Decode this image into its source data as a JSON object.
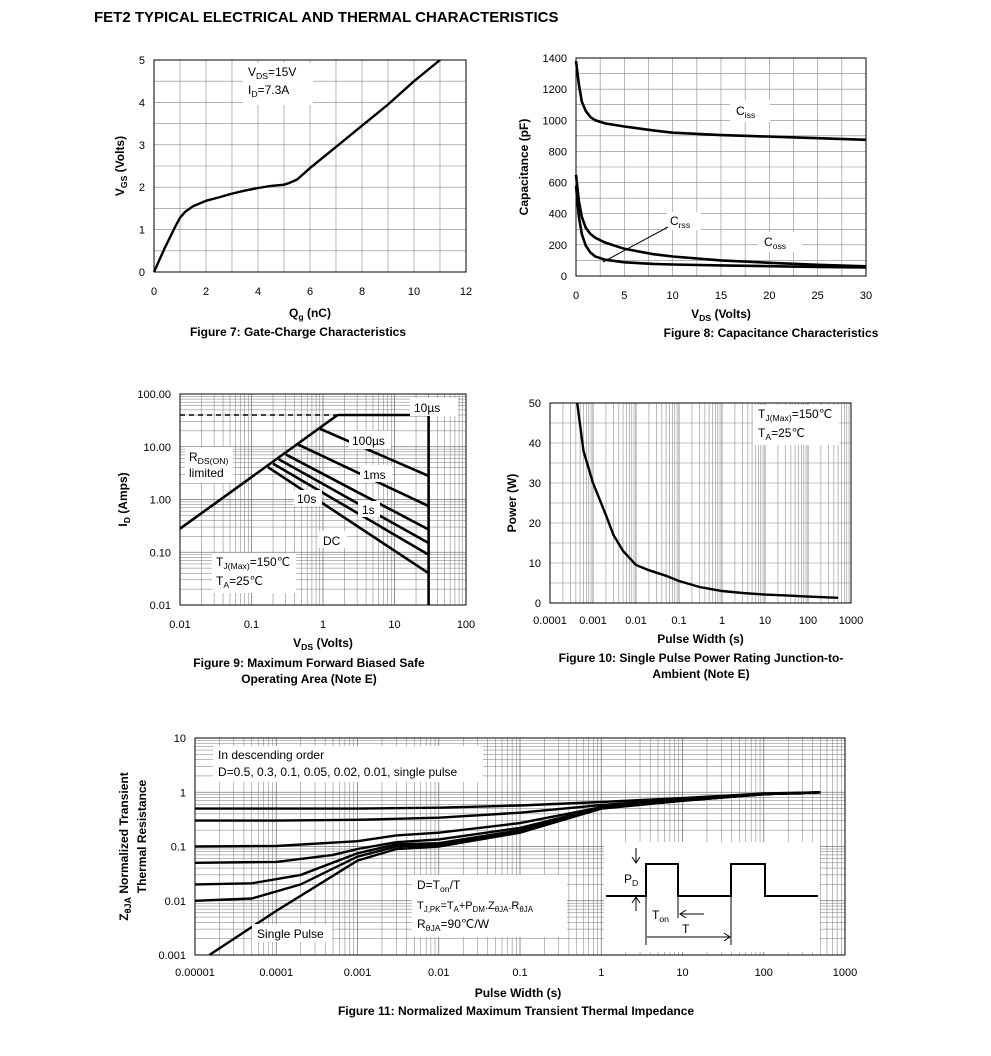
{
  "page_title": "FET2 TYPICAL ELECTRICAL AND THERMAL CHARACTERISTICS",
  "chart_data": [
    {
      "id": "fig7",
      "type": "line",
      "caption": "Figure 7: Gate-Charge Characteristics",
      "xlabel": {
        "main": "Q",
        "sub": "g",
        "tail": " (nC)"
      },
      "ylabel": {
        "main": "V",
        "sub": "GS",
        "tail": " (Volts)"
      },
      "xlim": [
        0,
        12
      ],
      "ylim": [
        0,
        5
      ],
      "xticks": [
        0,
        2,
        4,
        6,
        8,
        10,
        12
      ],
      "yticks": [
        0,
        1,
        2,
        3,
        4,
        5
      ],
      "grid": true,
      "annotations": [
        {
          "main": "V",
          "sub": "DS",
          "tail": "=15V"
        },
        {
          "main": "I",
          "sub": "D",
          "tail": "=7.3A"
        }
      ],
      "series": [
        {
          "x": [
            0,
            0.4,
            0.8,
            1.0,
            1.2,
            1.5,
            2.0,
            2.5,
            3.0,
            3.5,
            4.0,
            4.5,
            5.0,
            5.2,
            5.5,
            6.0,
            7.0,
            8.0,
            9.0,
            10.0,
            11.0
          ],
          "y": [
            0,
            0.55,
            1.05,
            1.28,
            1.42,
            1.55,
            1.68,
            1.76,
            1.85,
            1.92,
            1.98,
            2.03,
            2.06,
            2.1,
            2.18,
            2.45,
            2.95,
            3.45,
            3.95,
            4.5,
            5.0
          ]
        }
      ]
    },
    {
      "id": "fig8",
      "type": "line",
      "caption": "Figure 8: Capacitance Characteristics",
      "xlabel": {
        "main": "V",
        "sub": "DS",
        "tail": " (Volts)"
      },
      "ylabel": {
        "main": "Capacitance (pF)",
        "sub": "",
        "tail": ""
      },
      "xlim": [
        0,
        30
      ],
      "ylim": [
        0,
        1400
      ],
      "xticks": [
        0,
        5,
        10,
        15,
        20,
        25,
        30
      ],
      "yticks": [
        0,
        200,
        400,
        600,
        800,
        1000,
        1200,
        1400
      ],
      "grid": true,
      "series": [
        {
          "name": "Ciss",
          "label": {
            "main": "C",
            "sub": "iss"
          },
          "x": [
            0,
            0.3,
            0.6,
            1,
            1.5,
            2,
            3,
            5,
            8,
            10,
            15,
            20,
            25,
            30
          ],
          "y": [
            1380,
            1230,
            1120,
            1060,
            1020,
            1000,
            980,
            960,
            935,
            920,
            905,
            895,
            885,
            875
          ]
        },
        {
          "name": "Coss",
          "label": {
            "main": "C",
            "sub": "oss"
          },
          "x": [
            0,
            0.3,
            0.6,
            1,
            1.5,
            2,
            3,
            5,
            8,
            10,
            15,
            20,
            25,
            30
          ],
          "y": [
            650,
            480,
            380,
            310,
            270,
            245,
            215,
            175,
            140,
            125,
            100,
            85,
            72,
            62
          ]
        },
        {
          "name": "Crss",
          "label": {
            "main": "C",
            "sub": "rss"
          },
          "x": [
            0,
            0.3,
            0.6,
            1,
            1.5,
            2,
            3,
            5,
            8,
            10,
            15,
            20,
            25,
            30
          ],
          "y": [
            580,
            380,
            270,
            195,
            150,
            125,
            105,
            88,
            78,
            74,
            68,
            63,
            58,
            55
          ]
        }
      ]
    },
    {
      "id": "fig9",
      "type": "line",
      "caption": [
        "Figure 9: Maximum Forward Biased Safe",
        "Operating Area (Note E)"
      ],
      "xlabel": {
        "main": "V",
        "sub": "DS",
        "tail": " (Volts)"
      },
      "ylabel": {
        "main": "I",
        "sub": "D",
        "tail": " (Amps)"
      },
      "xscale": "log",
      "yscale": "log",
      "xlim": [
        0.01,
        100
      ],
      "ylim": [
        0.01,
        100
      ],
      "xtick_labels": [
        "0.01",
        "0.1",
        "1",
        "10",
        "100"
      ],
      "ytick_labels": [
        "0.01",
        "0.10",
        "1.00",
        "10.00",
        "100.00"
      ],
      "grid": true,
      "rds_label": {
        "main": "R",
        "sub": "DS(ON)",
        "tail": "",
        "line2": "limited"
      },
      "annotations": [
        {
          "main": "T",
          "sub": "J(Max)",
          "tail": "=150℃"
        },
        {
          "main": "T",
          "sub": "A",
          "tail": "=25℃"
        }
      ],
      "series": [
        {
          "name": "RDS(ON) limited",
          "x": [
            0.01,
            1.6
          ],
          "y": [
            0.28,
            40
          ]
        },
        {
          "name": "10us",
          "label": "10µs",
          "x": [
            1.6,
            30
          ],
          "y": [
            40,
            40
          ]
        },
        {
          "name": "100us",
          "label": "100µs",
          "x": [
            0.9,
            30
          ],
          "y": [
            22,
            2.8
          ]
        },
        {
          "name": "1ms",
          "label": "1ms",
          "x": [
            0.45,
            30
          ],
          "y": [
            11,
            0.75
          ]
        },
        {
          "name": "10ms",
          "label": "",
          "x": [
            0.3,
            30
          ],
          "y": [
            7.2,
            0.27
          ]
        },
        {
          "name": "1s",
          "label": "1s",
          "x": [
            0.24,
            30
          ],
          "y": [
            5.8,
            0.15
          ]
        },
        {
          "name": "10s",
          "label": "10s",
          "x": [
            0.2,
            30
          ],
          "y": [
            4.8,
            0.09
          ]
        },
        {
          "name": "DC",
          "label": "DC",
          "x": [
            0.17,
            30
          ],
          "y": [
            4.1,
            0.04
          ]
        },
        {
          "name": "VDS max",
          "label": "",
          "x": [
            30,
            30
          ],
          "y": [
            0.01,
            40
          ]
        },
        {
          "name": "Id max (dashed)",
          "label": "",
          "x": [
            0.01,
            30
          ],
          "y": [
            40,
            40
          ]
        }
      ]
    },
    {
      "id": "fig10",
      "type": "line",
      "caption": [
        "Figure 10: Single Pulse Power Rating Junction-to-",
        "Ambient (Note E)"
      ],
      "xlabel": {
        "main": "Pulse Width (s)",
        "sub": "",
        "tail": ""
      },
      "ylabel": {
        "main": "Power (W)",
        "sub": "",
        "tail": ""
      },
      "xscale": "log",
      "xlim": [
        0.0001,
        1000
      ],
      "ylim": [
        0,
        50
      ],
      "xtick_labels": [
        "0.0001",
        "0.001",
        "0.01",
        "0.1",
        "1",
        "10",
        "100",
        "1000"
      ],
      "yticks": [
        0,
        10,
        20,
        30,
        40,
        50
      ],
      "grid": true,
      "annotations": [
        {
          "main": "T",
          "sub": "J(Max)",
          "tail": "=150℃"
        },
        {
          "main": "T",
          "sub": "A",
          "tail": "=25℃"
        }
      ],
      "series": [
        {
          "x": [
            0.00043,
            0.0006,
            0.001,
            0.002,
            0.003,
            0.005,
            0.01,
            0.02,
            0.05,
            0.1,
            0.3,
            1,
            3,
            10,
            30,
            100,
            500
          ],
          "y": [
            50,
            38,
            30,
            22,
            17,
            13,
            9.5,
            8.2,
            6.8,
            5.5,
            4.0,
            3.0,
            2.5,
            2.1,
            1.9,
            1.6,
            1.3
          ]
        }
      ]
    },
    {
      "id": "fig11",
      "type": "line",
      "caption": "Figure 11: Normalized Maximum Transient Thermal Impedance",
      "xlabel": {
        "main": "Pulse Width (s)",
        "sub": "",
        "tail": ""
      },
      "ylabel": {
        "line1": "Z",
        "line1sub": "θJA",
        "line1tail": " Normalized Transient",
        "line2": "Thermal Resistance"
      },
      "xscale": "log",
      "yscale": "log",
      "xlim": [
        1e-05,
        1000
      ],
      "ylim": [
        0.001,
        10
      ],
      "xtick_labels": [
        "0.00001",
        "0.0001",
        "0.001",
        "0.01",
        "0.1",
        "1",
        "10",
        "100",
        "1000"
      ],
      "ytick_labels": [
        "0.001",
        "0.01",
        "0.1",
        "1",
        "10"
      ],
      "grid": true,
      "legend_text": [
        "In descending order",
        "D=0.5, 0.3, 0.1, 0.05, 0.02, 0.01, single pulse"
      ],
      "formula": [
        {
          "main": "D=T",
          "sub": "on",
          "tail": "/T"
        },
        {
          "main": "T",
          "sub": "J,PK",
          "tail": "=T",
          "sub2": "A",
          "tail2": "+P",
          "sub3": "DM",
          "tail3": ".Z",
          "sub4": "θJA",
          "tail4": ".R",
          "sub5": "θJA"
        },
        {
          "main": "R",
          "sub": "θJA",
          "tail": "=90℃/W"
        }
      ],
      "single_pulse_label": "Single Pulse",
      "pulse_diagram": {
        "pd": {
          "main": "P",
          "sub": "D"
        },
        "ton": {
          "main": "T",
          "sub": "on"
        },
        "t": "T"
      },
      "series": [
        {
          "name": "D=0.5",
          "x": [
            1e-05,
            0.0001,
            0.001,
            0.01,
            0.1,
            1,
            10,
            100,
            500
          ],
          "y": [
            0.5,
            0.5,
            0.5,
            0.52,
            0.57,
            0.66,
            0.78,
            0.95,
            1.0
          ]
        },
        {
          "name": "D=0.3",
          "x": [
            1e-05,
            0.0001,
            0.001,
            0.01,
            0.1,
            1,
            10,
            100,
            500
          ],
          "y": [
            0.3,
            0.3,
            0.31,
            0.34,
            0.42,
            0.58,
            0.75,
            0.93,
            1.0
          ]
        },
        {
          "name": "D=0.1",
          "x": [
            1e-05,
            0.0001,
            0.001,
            0.003,
            0.01,
            0.1,
            1,
            10,
            100,
            500
          ],
          "y": [
            0.1,
            0.102,
            0.125,
            0.16,
            0.18,
            0.27,
            0.53,
            0.72,
            0.92,
            1.0
          ]
        },
        {
          "name": "D=0.05",
          "x": [
            1e-05,
            0.0001,
            0.0005,
            0.001,
            0.003,
            0.01,
            0.1,
            1,
            10,
            100,
            500
          ],
          "y": [
            0.05,
            0.052,
            0.07,
            0.09,
            0.12,
            0.135,
            0.22,
            0.52,
            0.71,
            0.92,
            1.0
          ]
        },
        {
          "name": "D=0.02",
          "x": [
            1e-05,
            5e-05,
            0.0002,
            0.001,
            0.003,
            0.01,
            0.1,
            1,
            10,
            100,
            500
          ],
          "y": [
            0.02,
            0.021,
            0.03,
            0.075,
            0.11,
            0.115,
            0.2,
            0.51,
            0.7,
            0.92,
            1.0
          ]
        },
        {
          "name": "D=0.01",
          "x": [
            1e-05,
            5e-05,
            0.0002,
            0.001,
            0.003,
            0.01,
            0.1,
            1,
            10,
            100,
            500
          ],
          "y": [
            0.01,
            0.011,
            0.02,
            0.065,
            0.1,
            0.11,
            0.19,
            0.5,
            0.7,
            0.92,
            1.0
          ]
        },
        {
          "name": "single pulse",
          "x": [
            1.5e-05,
            0.0001,
            0.001,
            0.003,
            0.01,
            0.1,
            1,
            10,
            100,
            500
          ],
          "y": [
            0.001,
            0.0065,
            0.055,
            0.09,
            0.1,
            0.18,
            0.5,
            0.7,
            0.92,
            1.0
          ]
        }
      ]
    }
  ]
}
